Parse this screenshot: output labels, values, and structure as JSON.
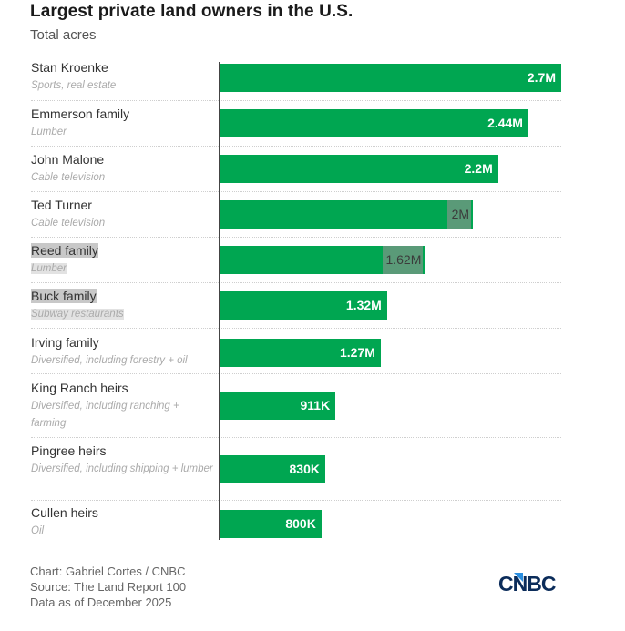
{
  "title": "Largest private land owners in the U.S.",
  "subtitle": "Total acres",
  "chart_data": {
    "type": "bar",
    "orientation": "horizontal",
    "title": "Largest private land owners in the U.S.",
    "subtitle": "Total acres",
    "xlabel": "",
    "ylabel": "",
    "xlim": [
      0,
      2.7
    ],
    "unit": "million acres",
    "grid": false,
    "categories": [
      "Stan Kroenke",
      "Emmerson family",
      "John Malone",
      "Ted Turner",
      "Reed family",
      "Buck family",
      "Irving family",
      "King Ranch heirs",
      "Pingree heirs",
      "Cullen heirs"
    ],
    "descriptions": [
      "Sports, real estate",
      "Lumber",
      "Cable television",
      "Cable television",
      "Lumber",
      "Subway restaurants",
      "Diversified, including forestry + oil",
      "Diversified, including ranching + farming",
      "Diversified, including shipping + lumber",
      "Oil"
    ],
    "values": [
      2.7,
      2.44,
      2.2,
      2.0,
      1.62,
      1.32,
      1.27,
      0.911,
      0.83,
      0.8
    ],
    "value_labels": [
      "2.7M",
      "2.44M",
      "2.2M",
      "2M",
      "1.62M",
      "1.32M",
      "1.27M",
      "911K",
      "830K",
      "800K"
    ],
    "highlighted": [
      false,
      false,
      false,
      true,
      true,
      true,
      false,
      false,
      false,
      false
    ],
    "bar_color": "#00a651",
    "highlight_color": "#5a9a78"
  },
  "footer": {
    "credit": "Chart: Gabriel Cortes / CNBC",
    "source": "Source: The Land Report 100",
    "date": "Data as of December 2025"
  },
  "logo": "CNBC"
}
